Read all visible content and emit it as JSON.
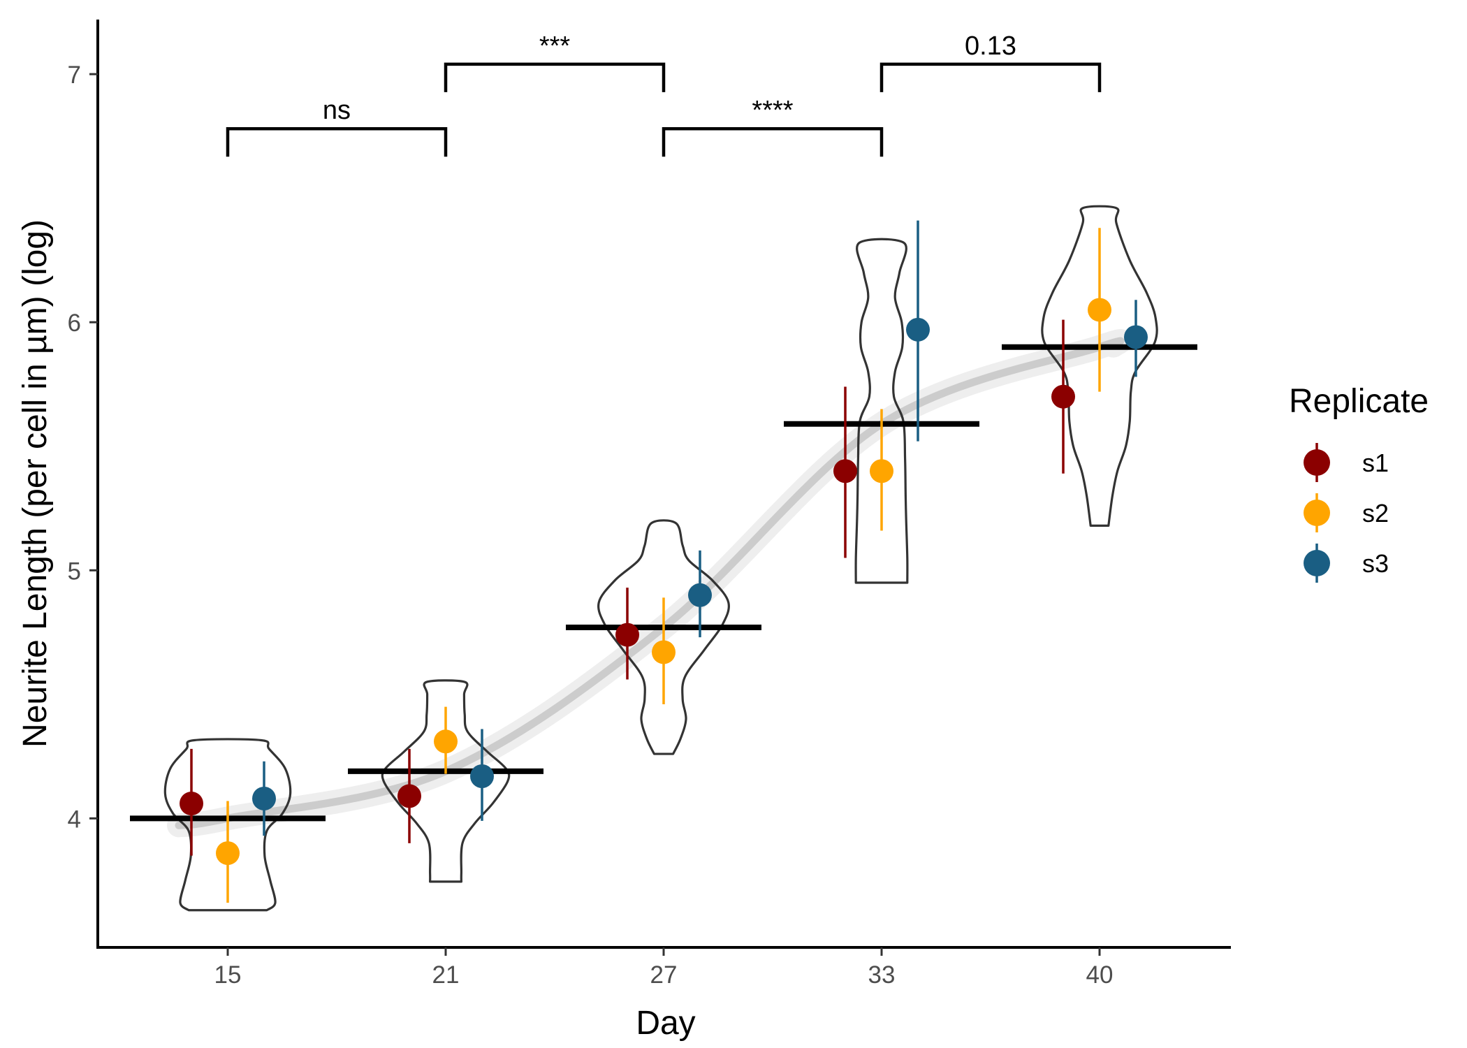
{
  "chart_data": {
    "type": "violin",
    "xlabel": "Day",
    "ylabel": "Neurite Length (per cell in µm) (log)",
    "categories": [
      "15",
      "21",
      "27",
      "33",
      "40"
    ],
    "y_ticks": [
      "4",
      "5",
      "6",
      "7"
    ],
    "ylim": [
      3.48,
      7.22
    ],
    "grid": false,
    "legend": {
      "title": "Replicate",
      "position": "right",
      "entries": [
        "s1",
        "s2",
        "s3"
      ]
    },
    "colors": {
      "s1": "#8B0000",
      "s2": "#FFA500",
      "s3": "#1A5E83",
      "violin": "#333333",
      "trend": "#cccccc"
    },
    "group_means": [
      4.0,
      4.19,
      4.77,
      5.59,
      5.9
    ],
    "series": [
      {
        "name": "s1",
        "values": [
          4.06,
          4.09,
          4.74,
          5.4,
          5.7
        ],
        "lower": [
          3.85,
          3.9,
          4.56,
          5.05,
          5.39
        ],
        "upper": [
          4.28,
          4.28,
          4.93,
          5.74,
          6.01
        ]
      },
      {
        "name": "s2",
        "values": [
          3.86,
          4.31,
          4.67,
          5.4,
          6.05
        ],
        "lower": [
          3.66,
          4.18,
          4.46,
          5.16,
          5.72
        ],
        "upper": [
          4.07,
          4.45,
          4.89,
          5.65,
          6.38
        ]
      },
      {
        "name": "s3",
        "values": [
          4.08,
          4.17,
          4.9,
          5.97,
          5.94
        ],
        "lower": [
          3.93,
          3.99,
          4.73,
          5.52,
          5.78
        ],
        "upper": [
          4.23,
          4.36,
          5.08,
          6.41,
          6.09
        ]
      }
    ],
    "violins": [
      {
        "category": "15",
        "profile": [
          [
            3.63,
            0.7
          ],
          [
            3.66,
            0.85
          ],
          [
            3.75,
            0.76
          ],
          [
            3.85,
            0.66
          ],
          [
            3.95,
            0.7
          ],
          [
            4.02,
            0.98
          ],
          [
            4.1,
            1.12
          ],
          [
            4.2,
            1.03
          ],
          [
            4.28,
            0.74
          ],
          [
            4.315,
            0.6
          ]
        ]
      },
      {
        "category": "21",
        "profile": [
          [
            3.745,
            0.28
          ],
          [
            3.78,
            0.28
          ],
          [
            3.9,
            0.3
          ],
          [
            3.98,
            0.52
          ],
          [
            4.06,
            0.84
          ],
          [
            4.15,
            1.11
          ],
          [
            4.2,
            1.08
          ],
          [
            4.27,
            0.74
          ],
          [
            4.35,
            0.39
          ],
          [
            4.42,
            0.34
          ],
          [
            4.5,
            0.33
          ],
          [
            4.55,
            0.34
          ]
        ]
      },
      {
        "category": "27",
        "profile": [
          [
            4.26,
            0.17
          ],
          [
            4.32,
            0.3
          ],
          [
            4.4,
            0.4
          ],
          [
            4.48,
            0.34
          ],
          [
            4.57,
            0.38
          ],
          [
            4.68,
            0.73
          ],
          [
            4.78,
            1.05
          ],
          [
            4.87,
            1.16
          ],
          [
            4.96,
            0.87
          ],
          [
            5.04,
            0.45
          ],
          [
            5.1,
            0.34
          ],
          [
            5.19,
            0.22
          ]
        ]
      },
      {
        "category": "33",
        "profile": [
          [
            4.95,
            0.46
          ],
          [
            5.05,
            0.46
          ],
          [
            5.2,
            0.44
          ],
          [
            5.3,
            0.43
          ],
          [
            5.45,
            0.42
          ],
          [
            5.6,
            0.39
          ],
          [
            5.7,
            0.22
          ],
          [
            5.8,
            0.24
          ],
          [
            5.9,
            0.37
          ],
          [
            6.0,
            0.36
          ],
          [
            6.1,
            0.24
          ],
          [
            6.2,
            0.32
          ],
          [
            6.32,
            0.4
          ]
        ]
      },
      {
        "category": "40",
        "profile": [
          [
            5.18,
            0.16
          ],
          [
            5.3,
            0.23
          ],
          [
            5.4,
            0.32
          ],
          [
            5.5,
            0.47
          ],
          [
            5.6,
            0.54
          ],
          [
            5.72,
            0.56
          ],
          [
            5.8,
            0.64
          ],
          [
            5.92,
            0.99
          ],
          [
            6.02,
            1.0
          ],
          [
            6.12,
            0.84
          ],
          [
            6.25,
            0.54
          ],
          [
            6.4,
            0.3
          ],
          [
            6.46,
            0.3
          ]
        ]
      }
    ],
    "comparisons": [
      {
        "from": "15",
        "to": "21",
        "label": "ns",
        "y": 6.78
      },
      {
        "from": "21",
        "to": "27",
        "label": "***",
        "y": 7.04
      },
      {
        "from": "27",
        "to": "33",
        "label": "****",
        "y": 6.78
      },
      {
        "from": "33",
        "to": "40",
        "label": "0.13",
        "y": 7.04
      }
    ]
  }
}
